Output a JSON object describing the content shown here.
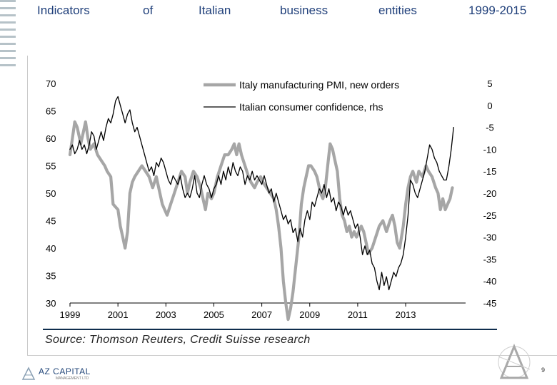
{
  "header": {
    "title_words": [
      "Indicators",
      "of",
      "Italian",
      "business",
      "entities",
      "1999-2015"
    ]
  },
  "colors": {
    "pmi": "#a6a6a6",
    "confidence": "#000000",
    "title": "#1f3f7a",
    "rule": "#0f2d4d"
  },
  "chart_data": {
    "type": "line",
    "title": "",
    "xlabel": "",
    "ylabel": "",
    "x_ticks": [
      "1999",
      "2001",
      "2003",
      "2005",
      "2007",
      "2009",
      "2011",
      "2013"
    ],
    "x_tick_values": [
      1999,
      2001,
      2003,
      2005,
      2007,
      2009,
      2011,
      2013
    ],
    "xlim": [
      1999,
      2015.5
    ],
    "ylim_left": [
      30,
      70
    ],
    "ylim_right": [
      -45,
      5
    ],
    "y_ticks_left": [
      "70",
      "65",
      "60",
      "55",
      "50",
      "45",
      "40",
      "35",
      "30"
    ],
    "y_tick_values_left": [
      70,
      65,
      60,
      55,
      50,
      45,
      40,
      35,
      30
    ],
    "y_ticks_right": [
      "5",
      "0",
      "-5",
      "-10",
      "-15",
      "-20",
      "-25",
      "-30",
      "-35",
      "-40",
      "-45"
    ],
    "y_tick_values_right": [
      5,
      0,
      -5,
      -10,
      -15,
      -20,
      -25,
      -30,
      -35,
      -40,
      -45
    ],
    "legend_position": "top-center",
    "series": [
      {
        "name": "Italy manufacturing PMI, new orders",
        "axis": "left",
        "points": [
          [
            1999.0,
            57
          ],
          [
            1999.1,
            60
          ],
          [
            1999.2,
            63
          ],
          [
            1999.3,
            62
          ],
          [
            1999.45,
            59
          ],
          [
            1999.55,
            61
          ],
          [
            1999.65,
            63
          ],
          [
            1999.75,
            60
          ],
          [
            1999.85,
            58
          ],
          [
            2000.0,
            59
          ],
          [
            2000.15,
            57
          ],
          [
            2000.3,
            56
          ],
          [
            2000.45,
            55
          ],
          [
            2000.55,
            54
          ],
          [
            2000.7,
            53
          ],
          [
            2000.8,
            48
          ],
          [
            2000.9,
            47.5
          ],
          [
            2001.0,
            47
          ],
          [
            2001.1,
            44
          ],
          [
            2001.2,
            42
          ],
          [
            2001.3,
            40
          ],
          [
            2001.4,
            43
          ],
          [
            2001.5,
            50
          ],
          [
            2001.6,
            52
          ],
          [
            2001.7,
            53
          ],
          [
            2001.85,
            54
          ],
          [
            2002.0,
            55
          ],
          [
            2002.15,
            54
          ],
          [
            2002.3,
            53
          ],
          [
            2002.45,
            51
          ],
          [
            2002.6,
            53
          ],
          [
            2002.75,
            50
          ],
          [
            2002.85,
            48
          ],
          [
            2002.95,
            47
          ],
          [
            2003.05,
            46
          ],
          [
            2003.2,
            48
          ],
          [
            2003.35,
            50
          ],
          [
            2003.5,
            52
          ],
          [
            2003.65,
            54
          ],
          [
            2003.8,
            53
          ],
          [
            2003.9,
            50
          ],
          [
            2004.0,
            52
          ],
          [
            2004.15,
            54
          ],
          [
            2004.3,
            53
          ],
          [
            2004.45,
            51
          ],
          [
            2004.55,
            49
          ],
          [
            2004.65,
            47
          ],
          [
            2004.75,
            50
          ],
          [
            2004.9,
            49
          ],
          [
            2005.0,
            50
          ],
          [
            2005.15,
            53
          ],
          [
            2005.3,
            55
          ],
          [
            2005.45,
            57
          ],
          [
            2005.6,
            57
          ],
          [
            2005.75,
            58
          ],
          [
            2005.85,
            59
          ],
          [
            2005.95,
            57
          ],
          [
            2006.05,
            59
          ],
          [
            2006.15,
            57
          ],
          [
            2006.3,
            55
          ],
          [
            2006.45,
            53
          ],
          [
            2006.55,
            52
          ],
          [
            2006.7,
            51
          ],
          [
            2006.8,
            52
          ],
          [
            2006.95,
            53
          ],
          [
            2007.05,
            52
          ],
          [
            2007.2,
            51
          ],
          [
            2007.35,
            50
          ],
          [
            2007.5,
            49
          ],
          [
            2007.6,
            47
          ],
          [
            2007.7,
            44
          ],
          [
            2007.8,
            40
          ],
          [
            2007.9,
            34
          ],
          [
            2008.0,
            30
          ],
          [
            2008.1,
            27
          ],
          [
            2008.2,
            29
          ],
          [
            2008.3,
            32
          ],
          [
            2008.4,
            36
          ],
          [
            2008.55,
            42
          ],
          [
            2008.65,
            48
          ],
          [
            2008.75,
            51
          ],
          [
            2008.85,
            53
          ],
          [
            2008.95,
            55
          ],
          [
            2009.05,
            55
          ],
          [
            2009.2,
            54
          ],
          [
            2009.3,
            53
          ],
          [
            2009.45,
            50
          ],
          [
            2009.55,
            49
          ],
          [
            2009.65,
            51
          ],
          [
            2009.75,
            55
          ],
          [
            2009.85,
            59
          ],
          [
            2009.95,
            58
          ],
          [
            2010.05,
            56
          ],
          [
            2010.15,
            54
          ],
          [
            2010.25,
            49
          ],
          [
            2010.35,
            46
          ],
          [
            2010.45,
            45
          ],
          [
            2010.55,
            43
          ],
          [
            2010.65,
            44
          ],
          [
            2010.75,
            42
          ],
          [
            2010.85,
            43
          ],
          [
            2010.95,
            42
          ],
          [
            2011.05,
            43
          ],
          [
            2011.15,
            44
          ],
          [
            2011.25,
            43
          ],
          [
            2011.35,
            41
          ],
          [
            2011.45,
            39
          ],
          [
            2011.6,
            40
          ],
          [
            2011.75,
            42
          ],
          [
            2011.9,
            44
          ],
          [
            2012.05,
            45
          ],
          [
            2012.2,
            43
          ],
          [
            2012.35,
            45
          ],
          [
            2012.45,
            46
          ],
          [
            2012.55,
            44
          ],
          [
            2012.65,
            41
          ],
          [
            2012.75,
            40
          ],
          [
            2012.9,
            44
          ],
          [
            2013.0,
            48
          ],
          [
            2013.1,
            51
          ],
          [
            2013.2,
            53
          ],
          [
            2013.3,
            54
          ],
          [
            2013.45,
            52
          ],
          [
            2013.55,
            54
          ],
          [
            2013.7,
            53
          ],
          [
            2013.85,
            55
          ],
          [
            2013.95,
            54
          ],
          [
            2014.1,
            53
          ],
          [
            2014.25,
            51
          ],
          [
            2014.35,
            50
          ],
          [
            2014.45,
            47
          ],
          [
            2014.55,
            49
          ],
          [
            2014.65,
            47
          ],
          [
            2014.75,
            48
          ],
          [
            2014.85,
            49
          ],
          [
            2014.95,
            51
          ]
        ]
      },
      {
        "name": "Italian consumer confidence, rhs",
        "axis": "right",
        "points": [
          [
            1999.0,
            -10
          ],
          [
            1999.1,
            -9
          ],
          [
            1999.2,
            -11
          ],
          [
            1999.3,
            -10
          ],
          [
            1999.4,
            -8
          ],
          [
            1999.5,
            -10
          ],
          [
            1999.6,
            -9
          ],
          [
            1999.7,
            -11
          ],
          [
            1999.8,
            -9
          ],
          [
            1999.9,
            -6
          ],
          [
            2000.0,
            -7
          ],
          [
            2000.1,
            -10
          ],
          [
            2000.2,
            -8
          ],
          [
            2000.3,
            -6
          ],
          [
            2000.4,
            -8
          ],
          [
            2000.5,
            -5
          ],
          [
            2000.6,
            -3
          ],
          [
            2000.7,
            -4
          ],
          [
            2000.8,
            -2
          ],
          [
            2000.9,
            1
          ],
          [
            2001.0,
            2
          ],
          [
            2001.1,
            0
          ],
          [
            2001.2,
            -2
          ],
          [
            2001.3,
            -4
          ],
          [
            2001.4,
            -2
          ],
          [
            2001.5,
            -1
          ],
          [
            2001.6,
            -4
          ],
          [
            2001.7,
            -6
          ],
          [
            2001.8,
            -5
          ],
          [
            2001.9,
            -7
          ],
          [
            2002.0,
            -9
          ],
          [
            2002.1,
            -11
          ],
          [
            2002.2,
            -13
          ],
          [
            2002.3,
            -15
          ],
          [
            2002.4,
            -14
          ],
          [
            2002.5,
            -16
          ],
          [
            2002.6,
            -13
          ],
          [
            2002.7,
            -14
          ],
          [
            2002.8,
            -12
          ],
          [
            2002.9,
            -13
          ],
          [
            2003.0,
            -15
          ],
          [
            2003.1,
            -17
          ],
          [
            2003.2,
            -18
          ],
          [
            2003.3,
            -16
          ],
          [
            2003.4,
            -17
          ],
          [
            2003.5,
            -18
          ],
          [
            2003.6,
            -16
          ],
          [
            2003.7,
            -19
          ],
          [
            2003.8,
            -21
          ],
          [
            2003.9,
            -20
          ],
          [
            2004.0,
            -21
          ],
          [
            2004.1,
            -19
          ],
          [
            2004.2,
            -16
          ],
          [
            2004.3,
            -20
          ],
          [
            2004.4,
            -21
          ],
          [
            2004.5,
            -18
          ],
          [
            2004.6,
            -16
          ],
          [
            2004.7,
            -18
          ],
          [
            2004.8,
            -19
          ],
          [
            2004.9,
            -21
          ],
          [
            2005.0,
            -19
          ],
          [
            2005.1,
            -18
          ],
          [
            2005.2,
            -16
          ],
          [
            2005.3,
            -18
          ],
          [
            2005.4,
            -15
          ],
          [
            2005.5,
            -17
          ],
          [
            2005.6,
            -14
          ],
          [
            2005.7,
            -16
          ],
          [
            2005.8,
            -13
          ],
          [
            2005.9,
            -15
          ],
          [
            2006.0,
            -16
          ],
          [
            2006.1,
            -14
          ],
          [
            2006.2,
            -15
          ],
          [
            2006.3,
            -18
          ],
          [
            2006.4,
            -16
          ],
          [
            2006.5,
            -17
          ],
          [
            2006.6,
            -15
          ],
          [
            2006.7,
            -17
          ],
          [
            2006.8,
            -16
          ],
          [
            2006.9,
            -17
          ],
          [
            2007.0,
            -18
          ],
          [
            2007.1,
            -16
          ],
          [
            2007.2,
            -18
          ],
          [
            2007.3,
            -20
          ],
          [
            2007.4,
            -19
          ],
          [
            2007.5,
            -22
          ],
          [
            2007.6,
            -20
          ],
          [
            2007.7,
            -22
          ],
          [
            2007.8,
            -24
          ],
          [
            2007.9,
            -26
          ],
          [
            2008.0,
            -25
          ],
          [
            2008.1,
            -27
          ],
          [
            2008.2,
            -26
          ],
          [
            2008.3,
            -29
          ],
          [
            2008.4,
            -28
          ],
          [
            2008.5,
            -31
          ],
          [
            2008.6,
            -28
          ],
          [
            2008.7,
            -30
          ],
          [
            2008.8,
            -26
          ],
          [
            2008.9,
            -24
          ],
          [
            2009.0,
            -26
          ],
          [
            2009.1,
            -22
          ],
          [
            2009.2,
            -23
          ],
          [
            2009.3,
            -21
          ],
          [
            2009.4,
            -19
          ],
          [
            2009.5,
            -20
          ],
          [
            2009.6,
            -18
          ],
          [
            2009.7,
            -21
          ],
          [
            2009.8,
            -19
          ],
          [
            2009.9,
            -22
          ],
          [
            2010.0,
            -21
          ],
          [
            2010.1,
            -24
          ],
          [
            2010.2,
            -22
          ],
          [
            2010.3,
            -23
          ],
          [
            2010.4,
            -25
          ],
          [
            2010.5,
            -23
          ],
          [
            2010.6,
            -25
          ],
          [
            2010.7,
            -24
          ],
          [
            2010.8,
            -26
          ],
          [
            2010.9,
            -28
          ],
          [
            2011.0,
            -27
          ],
          [
            2011.1,
            -30
          ],
          [
            2011.2,
            -34
          ],
          [
            2011.3,
            -32
          ],
          [
            2011.4,
            -34
          ],
          [
            2011.5,
            -33
          ],
          [
            2011.6,
            -36
          ],
          [
            2011.7,
            -37
          ],
          [
            2011.8,
            -40
          ],
          [
            2011.9,
            -42
          ],
          [
            2012.0,
            -38
          ],
          [
            2012.1,
            -41
          ],
          [
            2012.2,
            -39
          ],
          [
            2012.3,
            -42
          ],
          [
            2012.4,
            -40
          ],
          [
            2012.5,
            -38
          ],
          [
            2012.6,
            -39
          ],
          [
            2012.7,
            -37
          ],
          [
            2012.8,
            -36
          ],
          [
            2012.9,
            -34
          ],
          [
            2013.0,
            -30
          ],
          [
            2013.1,
            -25
          ],
          [
            2013.2,
            -17
          ],
          [
            2013.3,
            -18
          ],
          [
            2013.4,
            -20
          ],
          [
            2013.5,
            -21
          ],
          [
            2013.6,
            -19
          ],
          [
            2013.7,
            -17
          ],
          [
            2013.8,
            -15
          ],
          [
            2013.9,
            -12
          ],
          [
            2014.0,
            -9
          ],
          [
            2014.1,
            -10
          ],
          [
            2014.2,
            -12
          ],
          [
            2014.3,
            -13
          ],
          [
            2014.4,
            -15
          ],
          [
            2014.5,
            -16
          ],
          [
            2014.6,
            -17
          ],
          [
            2014.7,
            -17
          ],
          [
            2014.8,
            -14
          ],
          [
            2014.9,
            -10
          ],
          [
            2015.0,
            -5
          ]
        ]
      }
    ]
  },
  "source_text": "Source: Thomson Reuters, Credit Suisse research",
  "footer": {
    "logo_name": "AZ CAPITAL",
    "logo_sub": "MANAGEMENT LTD",
    "page_number": "9"
  }
}
